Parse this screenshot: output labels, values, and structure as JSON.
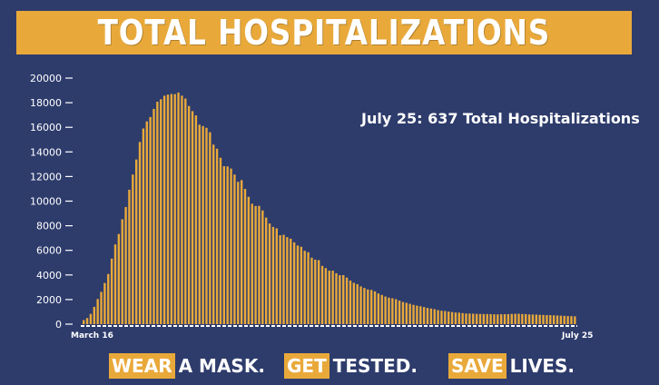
{
  "title": "TOTAL HOSPITALIZATIONS",
  "annotation": "July 25: 637 Total Hospitalizations",
  "colors": {
    "background": "#2e3c6c",
    "accent": "#e9a93a",
    "text": "#ffffff"
  },
  "footer": [
    {
      "highlight": "WEAR",
      "rest": "A MASK."
    },
    {
      "highlight": "GET",
      "rest": "TESTED."
    },
    {
      "highlight": "SAVE",
      "rest": "LIVES."
    }
  ],
  "chart_data": {
    "type": "bar",
    "title": "TOTAL HOSPITALIZATIONS",
    "xlabel": "",
    "ylabel": "",
    "x_start_label": "March 16",
    "x_end_label": "July 25",
    "yticks": [
      0,
      2000,
      4000,
      6000,
      8000,
      10000,
      12000,
      14000,
      16000,
      18000,
      20000
    ],
    "ytick_labels": [
      "0",
      "2000",
      "4000",
      "6000",
      "8000",
      "10000",
      "12000",
      "14000",
      "16000",
      "18000",
      "20000"
    ],
    "ylim": [
      0,
      20000
    ],
    "grid": false,
    "annotation": "July 25: 637 Total Hospitalizations",
    "values": [
      326,
      496,
      837,
      1406,
      2043,
      2629,
      3343,
      4079,
      5327,
      6481,
      7328,
      8526,
      9517,
      10929,
      12160,
      13383,
      14810,
      15905,
      16479,
      16837,
      17493,
      18079,
      18279,
      18569,
      18654,
      18707,
      18697,
      18825,
      18569,
      18335,
      17735,
      17316,
      16967,
      16213,
      16103,
      15958,
      15599,
      14592,
      14258,
      13524,
      12839,
      12819,
      12646,
      12159,
      11571,
      11707,
      10993,
      10350,
      9786,
      9600,
      9615,
      9243,
      8665,
      8186,
      7904,
      7786,
      7226,
      7262,
      7072,
      6946,
      6646,
      6394,
      6290,
      5966,
      5847,
      5404,
      5242,
      5202,
      4739,
      4561,
      4350,
      4348,
      4140,
      3981,
      3986,
      3786,
      3545,
      3361,
      3255,
      3072,
      2943,
      2819,
      2784,
      2662,
      2496,
      2374,
      2249,
      2156,
      2104,
      2029,
      1917,
      1798,
      1734,
      1655,
      1570,
      1507,
      1453,
      1387,
      1318,
      1268,
      1219,
      1141,
      1091,
      1070,
      1023,
      982,
      950,
      935,
      897,
      869,
      863,
      852,
      833,
      830,
      823,
      822,
      812,
      801,
      797,
      805,
      810,
      817,
      830,
      841,
      846,
      822,
      815,
      792,
      780,
      775,
      758,
      748,
      736,
      734,
      717,
      708,
      690,
      679,
      659,
      650,
      637
    ]
  }
}
